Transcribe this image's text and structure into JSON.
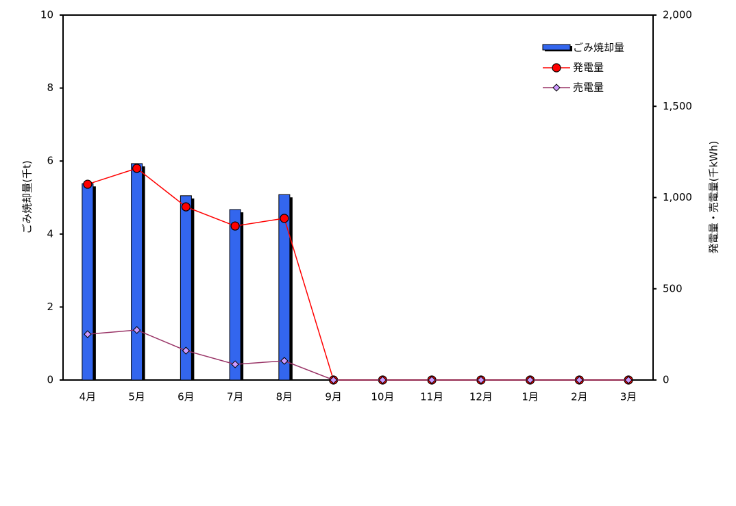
{
  "chart_data": {
    "type": "bar-line",
    "categories": [
      "4月",
      "5月",
      "6月",
      "7月",
      "8月",
      "9月",
      "10月",
      "11月",
      "12月",
      "1月",
      "2月",
      "3月"
    ],
    "ylabel": "ごみ焼却量(千t)",
    "y2label": "発電量・売電量(千kWh)",
    "ylim": [
      0,
      10
    ],
    "yticks": [
      0,
      2,
      4,
      6,
      8,
      10
    ],
    "y2lim": [
      0,
      2000
    ],
    "y2ticks": [
      0,
      500,
      {
        "value": 1000,
        "label": "1,000"
      },
      {
        "value": 1500,
        "label": "1,500"
      },
      {
        "value": 2000,
        "label": "2,000"
      }
    ],
    "legend": "upper right",
    "series": [
      {
        "name": "ごみ焼却量",
        "type": "bar",
        "color": "#3366ee",
        "values": [
          5.38,
          5.93,
          5.05,
          4.67,
          5.08,
          null,
          null,
          null,
          null,
          null,
          null,
          null
        ]
      },
      {
        "name": "発電量",
        "type": "line",
        "axis": "y2",
        "marker": "circle",
        "color": "#ff0000",
        "values": [
          1073,
          1160,
          949,
          844,
          886,
          0,
          0,
          0,
          0,
          0,
          0,
          0
        ]
      },
      {
        "name": "売電量",
        "type": "line",
        "axis": "y2",
        "marker": "diamond",
        "color": "#993366",
        "marker_color": "#cc99ff",
        "values": [
          251,
          274,
          161,
          86,
          105,
          0,
          0,
          0,
          0,
          0,
          0,
          0
        ]
      }
    ]
  }
}
